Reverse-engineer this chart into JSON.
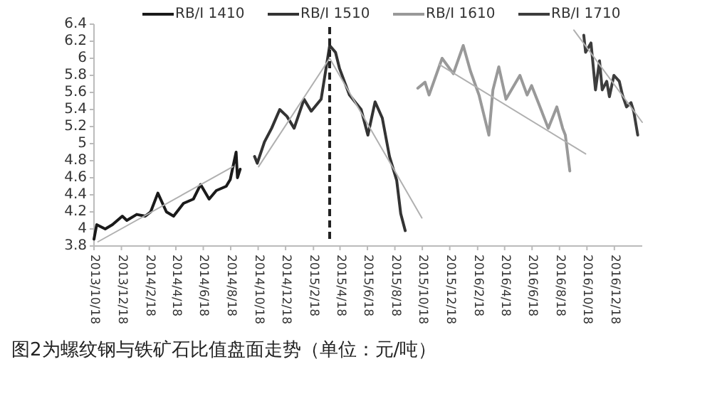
{
  "chart_data": {
    "type": "line",
    "title": "图2为螺纹钢与铁矿石比值盘面走势（单位：元/吨）",
    "legend": "top",
    "xlim": [
      "2013-10-18",
      "2017-02-18"
    ],
    "xticks": [
      {
        "value": "2013-10-18",
        "label": "2013/10/18"
      },
      {
        "value": "2013-12-18",
        "label": "2013/12/18"
      },
      {
        "value": "2014-02-18",
        "label": "2014/2/18"
      },
      {
        "value": "2014-04-18",
        "label": "2014/4/18"
      },
      {
        "value": "2014-06-18",
        "label": "2014/6/18"
      },
      {
        "value": "2014-08-18",
        "label": "2014/8/18"
      },
      {
        "value": "2014-10-18",
        "label": "2014/10/18"
      },
      {
        "value": "2014-12-18",
        "label": "2014/12/18"
      },
      {
        "value": "2015-02-18",
        "label": "2015/2/18"
      },
      {
        "value": "2015-04-18",
        "label": "2015/4/18"
      },
      {
        "value": "2015-06-18",
        "label": "2015/6/18"
      },
      {
        "value": "2015-08-18",
        "label": "2015/8/18"
      },
      {
        "value": "2015-10-18",
        "label": "2015/10/18"
      },
      {
        "value": "2015-12-18",
        "label": "2015/12/18"
      },
      {
        "value": "2016-02-18",
        "label": "2016/2/18"
      },
      {
        "value": "2016-04-18",
        "label": "2016/4/18"
      },
      {
        "value": "2016-06-18",
        "label": "2016/6/18"
      },
      {
        "value": "2016-08-18",
        "label": "2016/8/18"
      },
      {
        "value": "2016-10-18",
        "label": "2016/10/18"
      },
      {
        "value": "2016-12-18",
        "label": "2016/12/18"
      }
    ],
    "ylim": [
      3.8,
      6.4
    ],
    "yticks": [
      3.8,
      4,
      4.2,
      4.4,
      4.6,
      4.8,
      5,
      5.2,
      5.4,
      5.6,
      5.8,
      6,
      6.2,
      6.4
    ],
    "ref_lines": [
      {
        "axis": "x",
        "value": "2015-03-26",
        "color": "#222222",
        "line_style": "dashed"
      }
    ],
    "series": [
      {
        "name": "RB/I 1410",
        "color": "#1a1a1a",
        "x": [
          "2013-10-18",
          "2013-10-24",
          "2013-11-12",
          "2013-11-28",
          "2013-12-20",
          "2013-12-30",
          "2014-01-21",
          "2014-02-09",
          "2014-02-21",
          "2014-03-09",
          "2014-03-28",
          "2014-04-13",
          "2014-05-05",
          "2014-05-27",
          "2014-06-12",
          "2014-07-01",
          "2014-07-17",
          "2014-08-08",
          "2014-08-17",
          "2014-08-30",
          "2014-09-02",
          "2014-09-08"
        ],
        "values": [
          3.88,
          4.05,
          4.0,
          4.05,
          4.15,
          4.1,
          4.17,
          4.15,
          4.2,
          4.42,
          4.2,
          4.15,
          4.3,
          4.35,
          4.52,
          4.35,
          4.45,
          4.5,
          4.58,
          4.9,
          4.6,
          4.7
        ]
      },
      {
        "name": "RB/I 1510",
        "color": "#333333",
        "x": [
          "2014-10-10",
          "2014-10-16",
          "2014-11-01",
          "2014-11-17",
          "2014-12-05",
          "2014-12-21",
          "2015-01-06",
          "2015-01-28",
          "2015-02-13",
          "2015-03-07",
          "2015-03-17",
          "2015-03-26",
          "2015-04-08",
          "2015-04-17",
          "2015-05-09",
          "2015-06-04",
          "2015-06-19",
          "2015-07-05",
          "2015-07-21",
          "2015-08-06",
          "2015-08-22",
          "2015-08-31",
          "2015-09-10"
        ],
        "values": [
          4.85,
          4.77,
          5.02,
          5.18,
          5.4,
          5.32,
          5.18,
          5.52,
          5.38,
          5.52,
          5.85,
          6.15,
          6.07,
          5.88,
          5.57,
          5.4,
          5.1,
          5.49,
          5.3,
          4.85,
          4.57,
          4.18,
          3.98
        ]
      },
      {
        "name": "RB/I 1610",
        "color": "#999999",
        "x": [
          "2015-10-08",
          "2015-10-24",
          "2015-11-02",
          "2015-12-01",
          "2015-12-26",
          "2016-01-17",
          "2016-02-02",
          "2016-02-21",
          "2016-03-14",
          "2016-03-23",
          "2016-04-05",
          "2016-04-21",
          "2016-05-22",
          "2016-06-07",
          "2016-06-17",
          "2016-07-02",
          "2016-07-24",
          "2016-08-12",
          "2016-08-25",
          "2016-08-31",
          "2016-09-10"
        ],
        "values": [
          5.65,
          5.72,
          5.57,
          6.0,
          5.82,
          6.15,
          5.85,
          5.57,
          5.1,
          5.63,
          5.9,
          5.52,
          5.8,
          5.57,
          5.68,
          5.48,
          5.18,
          5.43,
          5.18,
          5.1,
          4.68
        ]
      },
      {
        "name": "RB/I 1710",
        "color": "#3d3d3d",
        "x": [
          "2016-10-11",
          "2016-10-15",
          "2016-10-27",
          "2016-11-06",
          "2016-11-15",
          "2016-11-21",
          "2016-12-01",
          "2016-12-07",
          "2016-12-17",
          "2016-12-29",
          "2017-01-05",
          "2017-01-14",
          "2017-01-24",
          "2017-01-30",
          "2017-02-08"
        ],
        "values": [
          6.27,
          6.07,
          6.18,
          5.63,
          5.97,
          5.63,
          5.73,
          5.55,
          5.8,
          5.73,
          5.57,
          5.43,
          5.48,
          5.38,
          5.1
        ]
      },
      {
        "type": "line",
        "color": "#b0b0b0",
        "x": [
          "2013-10-27",
          "2014-08-23"
        ],
        "values": [
          3.85,
          4.73
        ]
      },
      {
        "type": "line",
        "color": "#b0b0b0",
        "x": [
          "2014-10-19",
          "2015-03-26"
        ],
        "values": [
          4.73,
          6.0
        ]
      },
      {
        "type": "line",
        "color": "#b0b0b0",
        "x": [
          "2015-03-26",
          "2015-10-17"
        ],
        "values": [
          6.0,
          4.13
        ]
      },
      {
        "type": "line",
        "color": "#b0b0b0",
        "x": [
          "2015-11-24",
          "2016-10-15"
        ],
        "values": [
          5.93,
          4.88
        ]
      },
      {
        "type": "line",
        "color": "#b0b0b0",
        "x": [
          "2016-09-19",
          "2017-02-18"
        ],
        "values": [
          6.33,
          5.25
        ]
      }
    ]
  }
}
